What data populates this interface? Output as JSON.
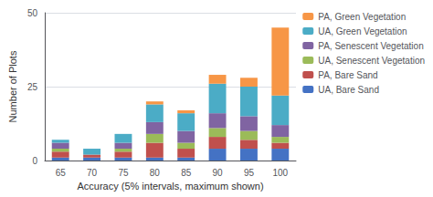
{
  "chart_data": {
    "type": "bar",
    "stacked": true,
    "xlabel": "Accuracy (5% intervals, maximum shown)",
    "ylabel": "Number of Plots",
    "categories": [
      "65",
      "70",
      "75",
      "80",
      "85",
      "90",
      "95",
      "100"
    ],
    "series": [
      {
        "name": "UA, Bare Sand",
        "color": "#4472C4",
        "values": [
          1,
          1,
          1,
          1,
          1,
          4,
          4,
          4
        ]
      },
      {
        "name": "PA, Bare Sand",
        "color": "#C0504D",
        "values": [
          2,
          1,
          2,
          5,
          3,
          4,
          3,
          2
        ]
      },
      {
        "name": "UA, Senescent Vegetation",
        "color": "#9BBB59",
        "values": [
          1,
          0,
          1,
          3,
          2,
          3,
          3,
          2
        ]
      },
      {
        "name": "PA, Senescent Vegetation",
        "color": "#8064A2",
        "values": [
          2,
          0,
          2,
          4,
          4,
          5,
          5,
          4
        ]
      },
      {
        "name": "UA, Green Vegetation",
        "color": "#4BACC6",
        "values": [
          1,
          2,
          3,
          6,
          6,
          10,
          10,
          10
        ]
      },
      {
        "name": "PA, Green Vegetation",
        "color": "#F79646",
        "values": [
          0,
          0,
          0,
          1,
          1,
          3,
          3,
          23
        ]
      }
    ],
    "ylim": [
      0,
      50
    ],
    "yticks": [
      0,
      25,
      50
    ],
    "grid": true,
    "legend": "right"
  }
}
